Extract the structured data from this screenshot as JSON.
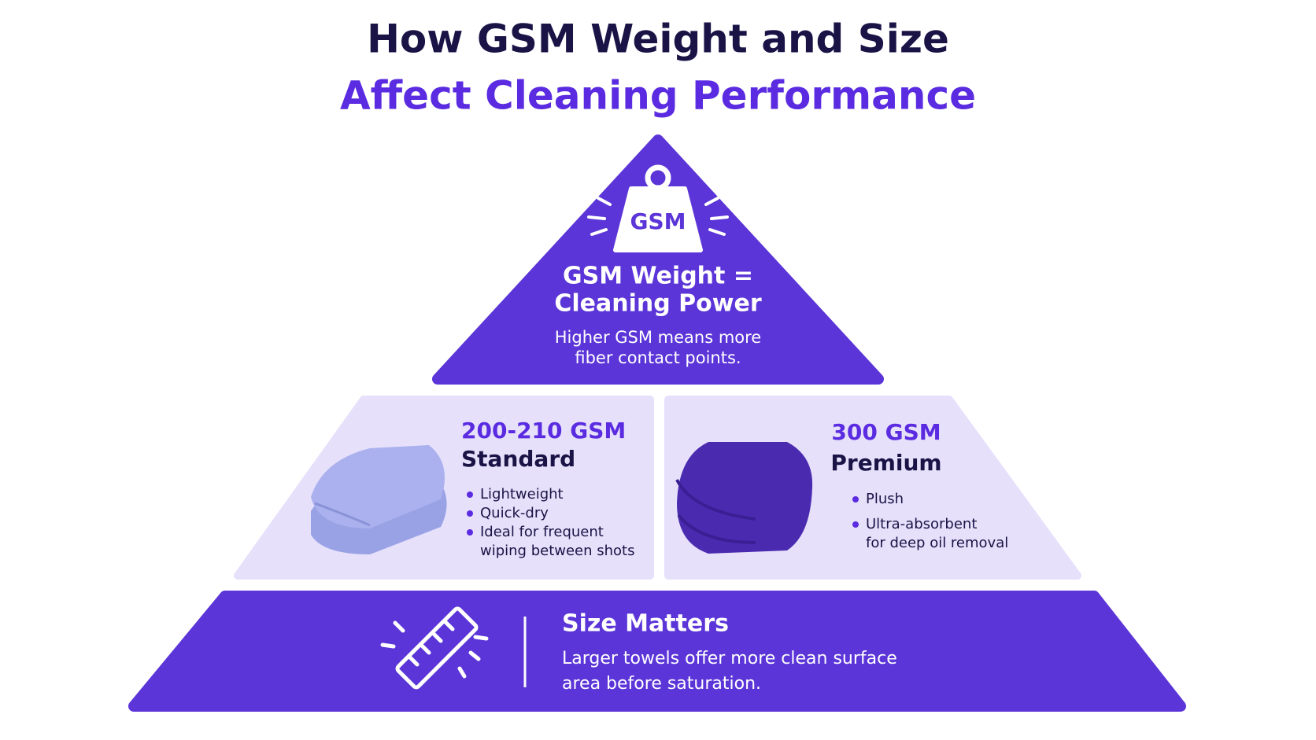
{
  "title": {
    "line1": "How GSM Weight and Size",
    "line2": "Affect Cleaning Performance"
  },
  "top": {
    "badge": "GSM",
    "heading": [
      "GSM Weight =",
      "Cleaning Power"
    ],
    "body": [
      "Higher GSM means more",
      "fiber contact points."
    ]
  },
  "tiers": [
    {
      "gsm": "200-210 GSM",
      "label": "Standard",
      "bullets": [
        [
          "Lightweight"
        ],
        [
          "Quick-dry"
        ],
        [
          "Ideal for frequent",
          "wiping between shots"
        ]
      ]
    },
    {
      "gsm": "300 GSM",
      "label": "Premium",
      "bullets": [
        [
          "Plush"
        ],
        [
          "Ultra-absorbent",
          "for deep oil removal"
        ]
      ]
    }
  ],
  "base": {
    "heading": "Size Matters",
    "body": [
      "Larger towels offer more clean surface",
      "area before saturation."
    ]
  }
}
